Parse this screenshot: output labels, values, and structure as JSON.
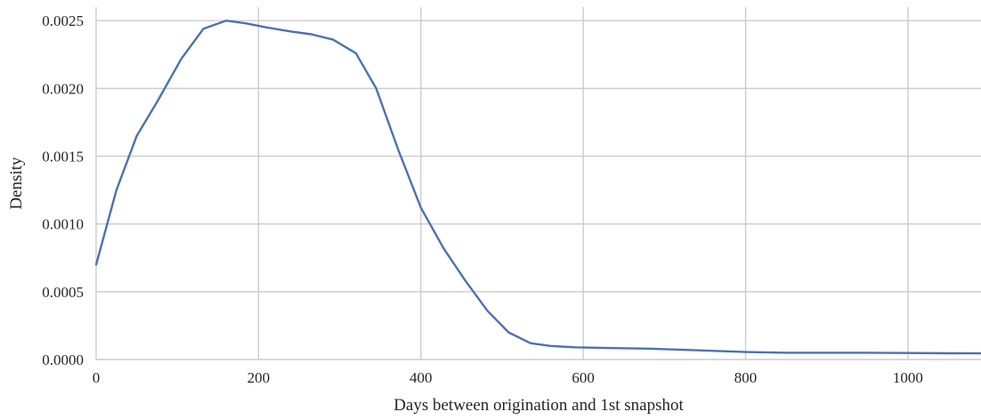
{
  "chart_data": {
    "type": "line",
    "title": "",
    "xlabel": "Days between origination and 1st snapshot",
    "ylabel": "Density",
    "xlim": [
      0,
      1090
    ],
    "ylim": [
      0,
      0.0026
    ],
    "x_ticks": [
      0,
      200,
      400,
      600,
      800,
      1000
    ],
    "x_tick_labels": [
      "0",
      "200",
      "400",
      "600",
      "800",
      "1000"
    ],
    "y_ticks": [
      0,
      0.0005,
      0.001,
      0.0015,
      0.002,
      0.0025
    ],
    "y_tick_labels": [
      "0.0000",
      "0.0005",
      "0.0010",
      "0.0015",
      "0.0020",
      "0.0025"
    ],
    "grid": true,
    "legend": "none",
    "colors": {
      "line": "#4c72b0",
      "grid": "#cccccc",
      "text": "#262626"
    },
    "series": [
      {
        "x": [
          0,
          25,
          50,
          75,
          105,
          132,
          160,
          185,
          210,
          240,
          265,
          292,
          320,
          345,
          372,
          400,
          428,
          455,
          482,
          508,
          535,
          560,
          590,
          630,
          680,
          730,
          780,
          800,
          850,
          900,
          950,
          1000,
          1050,
          1090
        ],
        "y": [
          0.0007,
          0.00125,
          0.00165,
          0.0019,
          0.00222,
          0.00244,
          0.0025,
          0.00248,
          0.00245,
          0.00242,
          0.0024,
          0.00236,
          0.00226,
          0.002,
          0.00155,
          0.00112,
          0.00082,
          0.00058,
          0.00036,
          0.0002,
          0.00012,
          0.0001,
          9e-05,
          8.5e-05,
          8e-05,
          7e-05,
          6e-05,
          5.5e-05,
          5e-05,
          5e-05,
          5e-05,
          4.8e-05,
          4.6e-05,
          4.5e-05
        ]
      }
    ]
  }
}
